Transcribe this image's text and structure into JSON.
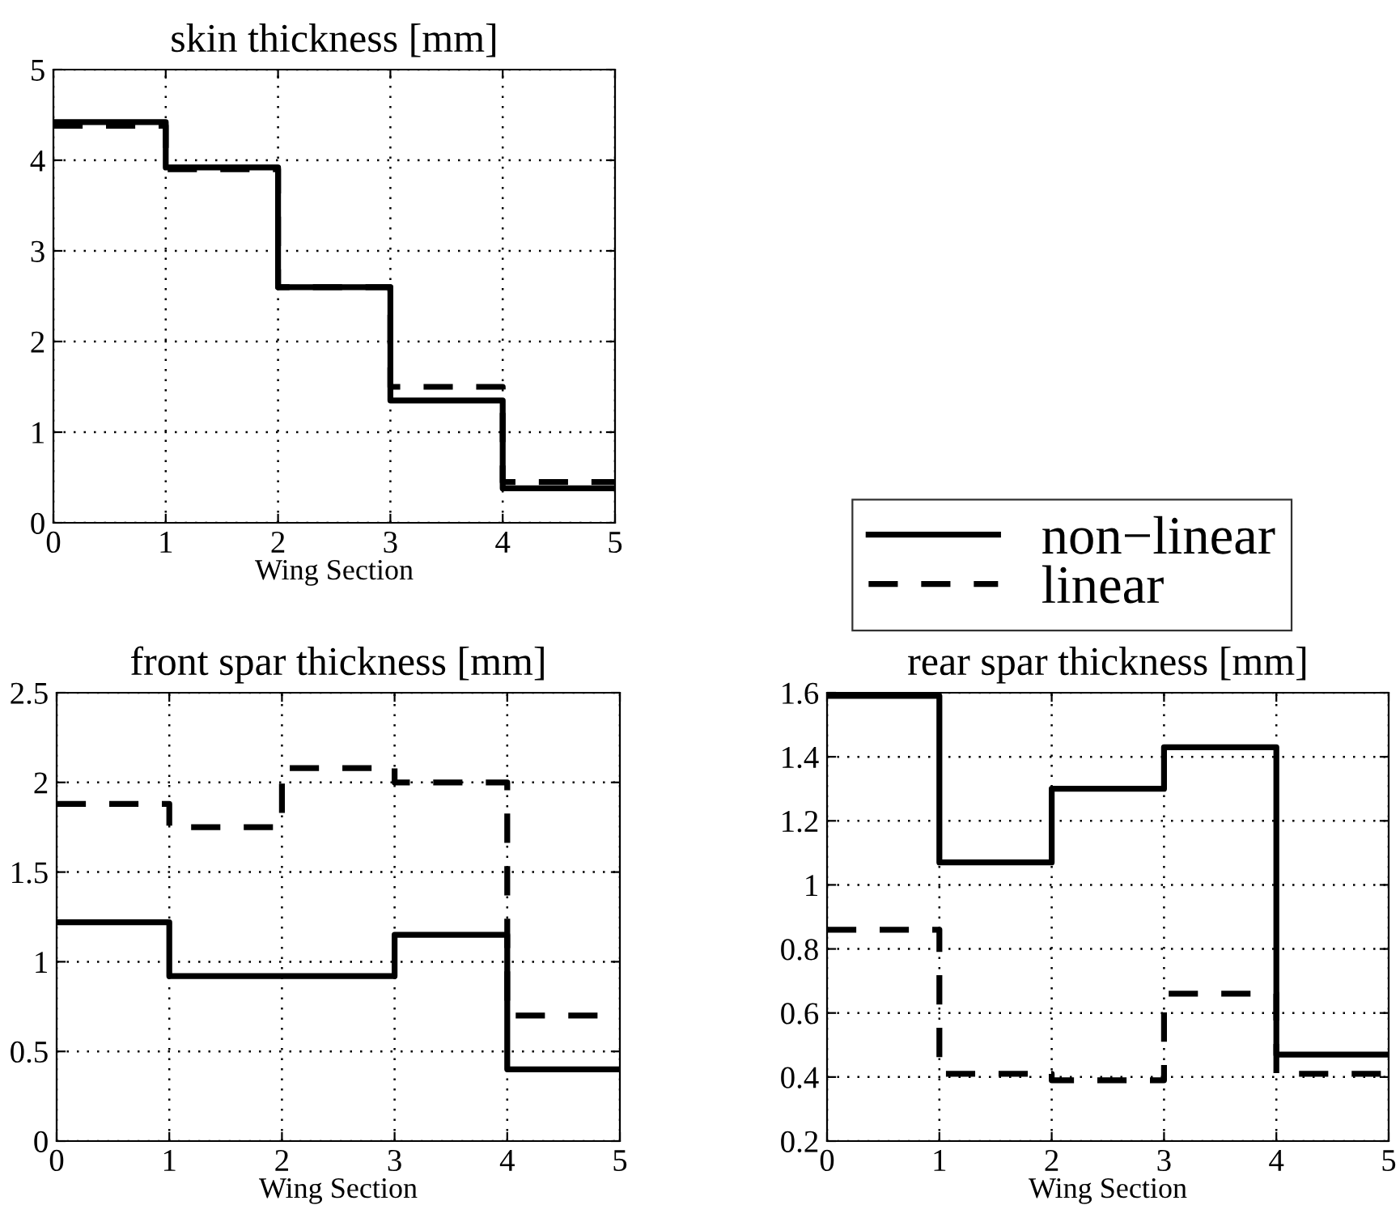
{
  "chart_data": [
    {
      "type": "step",
      "title": "skin thickness [mm]",
      "xlabel": "Wing Section",
      "x": [
        0,
        1,
        2,
        3,
        4,
        5
      ],
      "xlim": [
        0,
        5
      ],
      "xticks": [
        0,
        1,
        2,
        3,
        4,
        5
      ],
      "ylim": [
        0,
        5
      ],
      "yticks": [
        0,
        1,
        2,
        3,
        4,
        5
      ],
      "grid": true,
      "legend": "right",
      "series": [
        {
          "name": "non−linear",
          "color": "#000000",
          "line_style": "solid",
          "values": [
            4.42,
            3.92,
            2.6,
            1.35,
            0.38,
            0.38
          ]
        },
        {
          "name": "linear",
          "color": "#000000",
          "line_style": "dashed",
          "values": [
            4.38,
            3.9,
            2.6,
            1.5,
            0.45,
            0.45
          ]
        }
      ]
    },
    {
      "type": "step",
      "title": "front spar thickness [mm]",
      "xlabel": "Wing Section",
      "x": [
        0,
        1,
        2,
        3,
        4,
        5
      ],
      "xlim": [
        0,
        5
      ],
      "xticks": [
        0,
        1,
        2,
        3,
        4,
        5
      ],
      "ylim": [
        0,
        2.5
      ],
      "yticks": [
        0,
        0.5,
        1,
        1.5,
        2,
        2.5
      ],
      "grid": true,
      "series": [
        {
          "color": "#000000",
          "line_style": "solid",
          "values": [
            1.22,
            0.92,
            0.92,
            1.15,
            0.4,
            0.4
          ]
        },
        {
          "color": "#000000",
          "line_style": "dashed",
          "values": [
            1.88,
            1.75,
            2.08,
            2.0,
            0.7,
            0.7
          ]
        }
      ]
    },
    {
      "type": "step",
      "title": "rear spar thickness [mm]",
      "xlabel": "Wing Section",
      "x": [
        0,
        1,
        2,
        3,
        4,
        5
      ],
      "xlim": [
        0,
        5
      ],
      "xticks": [
        0,
        1,
        2,
        3,
        4,
        5
      ],
      "ylim": [
        0.2,
        1.6
      ],
      "yticks": [
        0.2,
        0.4,
        0.6,
        0.8,
        1,
        1.2,
        1.4,
        1.6
      ],
      "grid": true,
      "series": [
        {
          "color": "#000000",
          "line_style": "solid",
          "values": [
            1.59,
            1.07,
            1.3,
            1.43,
            0.47,
            0.47
          ]
        },
        {
          "color": "#000000",
          "line_style": "dashed",
          "values": [
            0.86,
            0.41,
            0.39,
            0.66,
            0.41,
            0.41
          ]
        }
      ]
    }
  ]
}
